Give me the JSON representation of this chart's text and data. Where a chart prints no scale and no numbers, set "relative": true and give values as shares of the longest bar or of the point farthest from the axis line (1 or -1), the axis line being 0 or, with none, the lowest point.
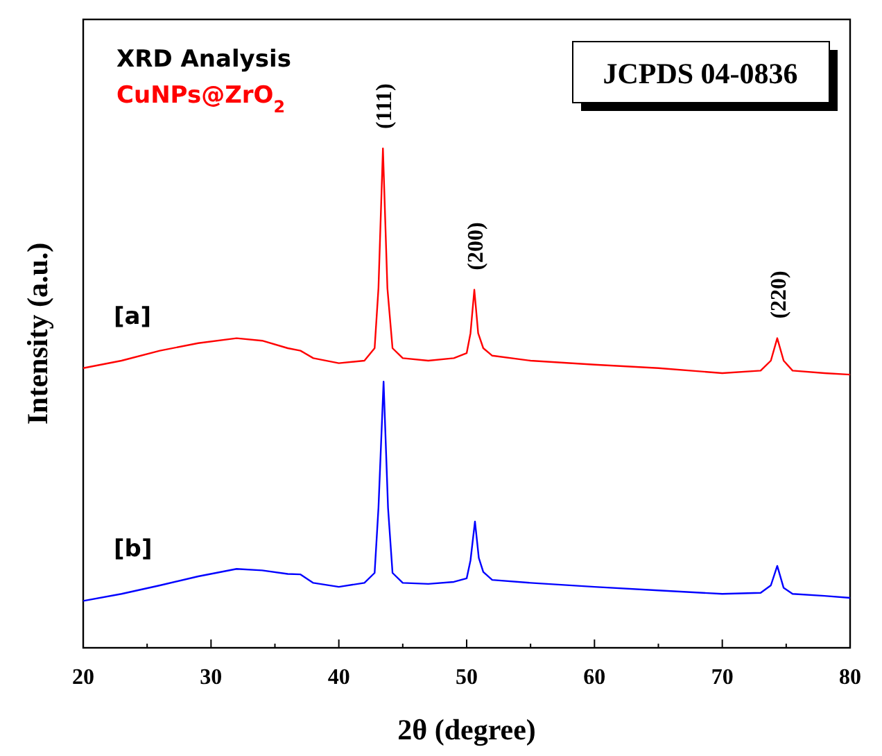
{
  "chart_data": {
    "type": "line",
    "xlabel": "2θ (degree)",
    "ylabel": "Intensity (a.u.)",
    "relative": true,
    "xlim": [
      20,
      80
    ],
    "xticks": [
      20,
      {
        "value": 25,
        "label": null
      },
      30,
      {
        "value": 35,
        "label": null
      },
      40,
      {
        "value": 45,
        "label": null
      },
      50,
      {
        "value": 55,
        "label": null
      },
      60,
      {
        "value": 65,
        "label": null
      },
      70,
      {
        "value": 75,
        "label": null
      },
      80
    ],
    "annotations": [
      "XRD Analysis",
      "CuNPs@ZrO$_{2}$",
      "JCPDS 04-0836",
      {
        "text": "(111)",
        "x": 43.45,
        "y": 1.0
      },
      {
        "text": "(200)",
        "x": 50.6,
        "y": 0.717
      },
      {
        "text": "(220)",
        "x": 74.3,
        "y": 0.62
      }
    ],
    "series": [
      {
        "name": "[a]",
        "color": "#ff0000",
        "x": [
          20,
          23,
          26,
          29,
          32,
          34,
          36,
          37,
          38,
          40,
          42,
          42.8,
          43.1,
          43.45,
          43.8,
          44.2,
          45,
          47,
          49,
          50,
          50.3,
          50.6,
          50.9,
          51.3,
          52,
          55,
          60,
          65,
          70,
          73,
          73.8,
          74.3,
          74.8,
          75.5,
          78,
          80
        ],
        "values": [
          0.56,
          0.575,
          0.595,
          0.61,
          0.62,
          0.615,
          0.6,
          0.595,
          0.58,
          0.57,
          0.575,
          0.6,
          0.72,
          1.0,
          0.72,
          0.6,
          0.58,
          0.575,
          0.58,
          0.59,
          0.63,
          0.717,
          0.63,
          0.6,
          0.585,
          0.575,
          0.567,
          0.56,
          0.55,
          0.555,
          0.575,
          0.62,
          0.575,
          0.555,
          0.55,
          0.547
        ]
      },
      {
        "name": "[b]",
        "color": "#0000ff",
        "x": [
          20,
          23,
          26,
          29,
          32,
          34,
          36,
          37,
          38,
          40,
          42,
          42.8,
          43.1,
          43.5,
          43.85,
          44.2,
          45,
          47,
          49,
          50,
          50.3,
          50.65,
          50.95,
          51.3,
          52,
          55,
          60,
          65,
          70,
          73,
          73.8,
          74.3,
          74.8,
          75.5,
          78,
          80
        ],
        "values": [
          0.094,
          0.108,
          0.125,
          0.143,
          0.158,
          0.155,
          0.148,
          0.147,
          0.13,
          0.122,
          0.13,
          0.15,
          0.28,
          0.533,
          0.28,
          0.15,
          0.13,
          0.128,
          0.132,
          0.139,
          0.175,
          0.253,
          0.18,
          0.152,
          0.136,
          0.13,
          0.122,
          0.115,
          0.108,
          0.11,
          0.125,
          0.164,
          0.12,
          0.108,
          0.104,
          0.1
        ]
      }
    ]
  }
}
